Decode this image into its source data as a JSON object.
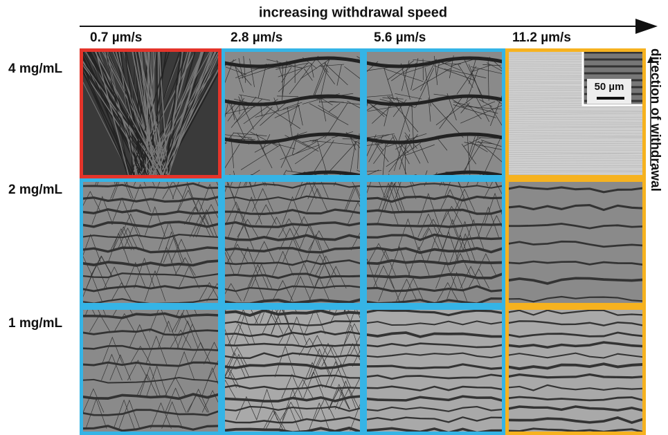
{
  "header": {
    "title": "increasing withdrawal speed",
    "direction": "direction of withdrawal"
  },
  "columns": [
    "0.7 µm/s",
    "2.8 µm/s",
    "5.6 µm/s",
    "11.2 µm/s"
  ],
  "rows": [
    {
      "label": "4 mg/mL",
      "borders": [
        "#e4342a",
        "#35b4e6",
        "#35b4e6",
        "#f6b21f"
      ]
    },
    {
      "label": "2 mg/mL",
      "borders": [
        "#35b4e6",
        "#35b4e6",
        "#35b4e6",
        "#f6b21f"
      ]
    },
    {
      "label": "1 mg/mL",
      "borders": [
        "#35b4e6",
        "#35b4e6",
        "#35b4e6",
        "#f6b21f"
      ]
    }
  ],
  "inset": {
    "scale_bar": "50 µm"
  }
}
